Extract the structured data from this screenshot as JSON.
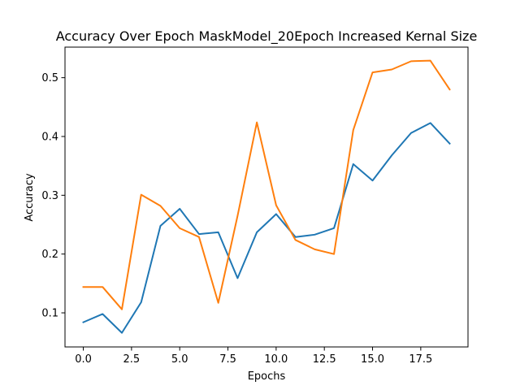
{
  "chart_data": {
    "type": "line",
    "title": "Accuracy Over Epoch MaskModel_20Epoch Increased Kernal Size",
    "xlabel": "Epochs",
    "ylabel": "Accuracy",
    "xlim": [
      -0.95,
      19.95
    ],
    "ylim": [
      0.042,
      0.552
    ],
    "xticks": [
      0.0,
      2.5,
      5.0,
      7.5,
      10.0,
      12.5,
      15.0,
      17.5
    ],
    "xtick_labels": [
      "0.0",
      "2.5",
      "5.0",
      "7.5",
      "10.0",
      "12.5",
      "15.0",
      "17.5"
    ],
    "yticks": [
      0.1,
      0.2,
      0.3,
      0.4,
      0.5
    ],
    "ytick_labels": [
      "0.1",
      "0.2",
      "0.3",
      "0.4",
      "0.5"
    ],
    "grid": false,
    "x": [
      0,
      1,
      2,
      3,
      4,
      5,
      6,
      7,
      8,
      9,
      10,
      11,
      12,
      13,
      14,
      15,
      16,
      17,
      18,
      19
    ],
    "series": [
      {
        "color": "#1f77b4",
        "values": [
          0.084,
          0.098,
          0.066,
          0.118,
          0.248,
          0.277,
          0.234,
          0.237,
          0.159,
          0.237,
          0.268,
          0.229,
          0.233,
          0.244,
          0.353,
          0.325,
          0.368,
          0.406,
          0.423,
          0.388
        ]
      },
      {
        "color": "#ff7f0e",
        "values": [
          0.144,
          0.144,
          0.106,
          0.301,
          0.282,
          0.244,
          0.229,
          0.117,
          0.265,
          0.424,
          0.283,
          0.224,
          0.208,
          0.2,
          0.411,
          0.509,
          0.514,
          0.528,
          0.529,
          0.48
        ]
      }
    ]
  }
}
